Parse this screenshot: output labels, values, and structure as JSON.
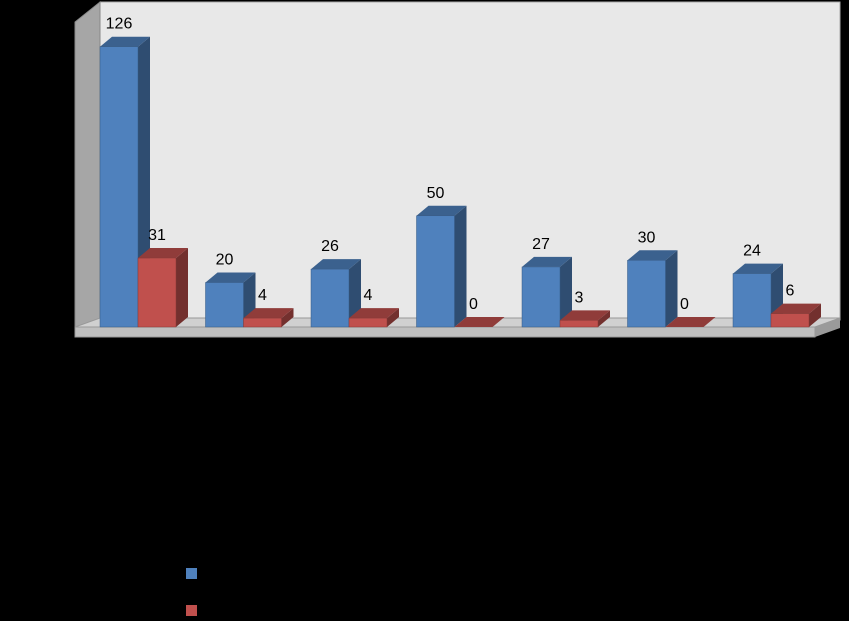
{
  "chart_data": {
    "type": "bar3d",
    "categories": [
      null,
      null,
      null,
      null,
      null,
      null,
      null
    ],
    "series": [
      {
        "color": "#4f81bd",
        "values": [
          126,
          20,
          26,
          50,
          27,
          30,
          24
        ]
      },
      {
        "color": "#c0504d",
        "values": [
          31,
          4,
          4,
          0,
          3,
          0,
          6
        ]
      }
    ],
    "ylim": [
      0,
      138
    ]
  }
}
